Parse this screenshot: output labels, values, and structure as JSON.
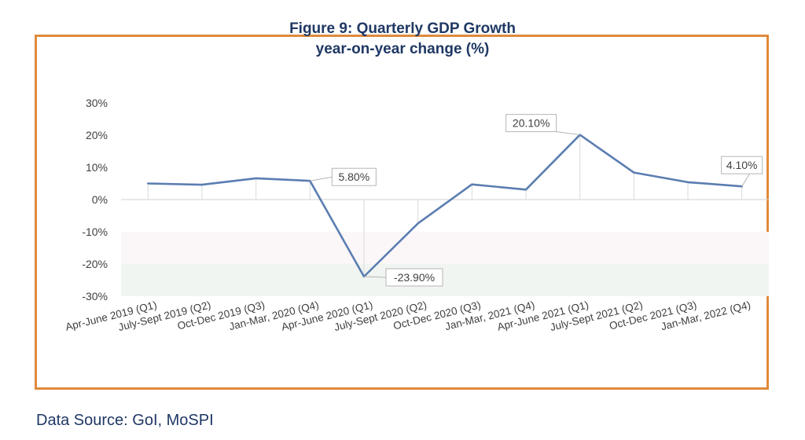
{
  "title_line1": "Figure 9: Quarterly GDP Growth",
  "title_line2": "year-on-year change (%)",
  "source": "Data Source: GoI, MoSPI",
  "chart_data": {
    "type": "line",
    "title": "Figure 9: Quarterly GDP Growth year-on-year change (%)",
    "categories": [
      "Apr-June 2019 (Q1)",
      "July-Sept 2019 (Q2)",
      "Oct-Dec 2019 (Q3)",
      "Jan-Mar, 2020 (Q4)",
      "Apr-June 2020 (Q1)",
      "July-Sept 2020 (Q2)",
      "Oct-Dec 2020 (Q3)",
      "Jan-Mar, 2021 (Q4)",
      "Apr-June 2021 (Q1)",
      "July-Sept 2021 (Q2)",
      "Oct-Dec 2021 (Q3)",
      "Jan-Mar, 2022 (Q4)"
    ],
    "series": [
      {
        "values": [
          5.0,
          4.6,
          6.6,
          5.8,
          -23.9,
          -7.4,
          4.7,
          3.1,
          20.1,
          8.4,
          5.4,
          4.1
        ]
      }
    ],
    "data_labels": [
      {
        "index": 3,
        "text": "5.80%"
      },
      {
        "index": 4,
        "text": "-23.90%"
      },
      {
        "index": 8,
        "text": "20.10%"
      },
      {
        "index": 11,
        "text": "4.10%"
      }
    ],
    "yticks": [
      "30%",
      "20%",
      "10%",
      "0%",
      "-10%",
      "-20%",
      "-30%"
    ],
    "ylim": [
      -30,
      30
    ],
    "line_color": "#5B7DB1",
    "grid": false
  }
}
